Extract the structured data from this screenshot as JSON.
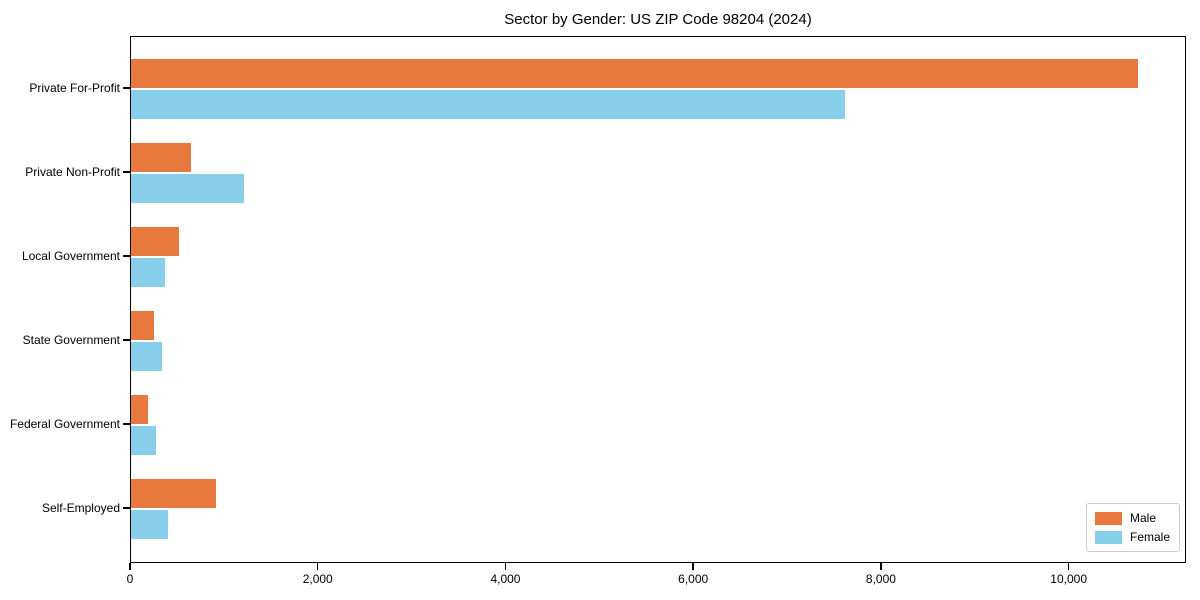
{
  "chart_data": {
    "type": "bar",
    "orientation": "horizontal",
    "title": "Sector by Gender: US ZIP Code 98204 (2024)",
    "categories": [
      "Private For-Profit",
      "Private Non-Profit",
      "Local Government",
      "State Government",
      "Federal Government",
      "Self-Employed"
    ],
    "series": [
      {
        "name": "Male",
        "color": "#e8793e",
        "values": [
          10730,
          640,
          515,
          245,
          180,
          910
        ]
      },
      {
        "name": "Female",
        "color": "#87ceeb",
        "values": [
          7610,
          1200,
          360,
          330,
          265,
          395
        ]
      }
    ],
    "xlim": [
      0,
      11250
    ],
    "x_ticks": [
      0,
      2000,
      4000,
      6000,
      8000,
      10000
    ],
    "x_tick_labels": [
      "0",
      "2,000",
      "4,000",
      "6,000",
      "8,000",
      "10,000"
    ],
    "xlabel": "",
    "ylabel": "",
    "grid": false,
    "legend_position": "lower right",
    "frame_color": "#000000",
    "background_color": "#ffffff"
  }
}
